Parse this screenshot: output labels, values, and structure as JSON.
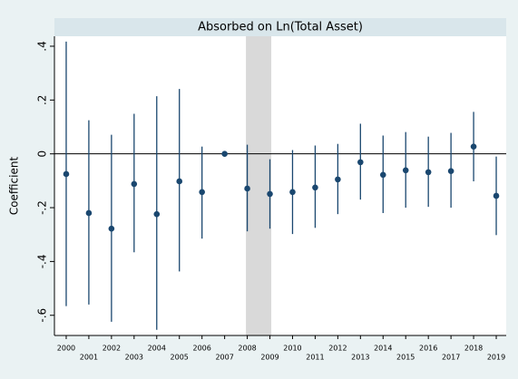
{
  "chart_data": {
    "type": "coefplot",
    "title": "Absorbed on Ln(Total Asset)",
    "y_label": "Coefficient",
    "x": [
      2000,
      2001,
      2002,
      2003,
      2004,
      2005,
      2006,
      2007,
      2008,
      2009,
      2010,
      2011,
      2012,
      2013,
      2014,
      2015,
      2016,
      2017,
      2018,
      2019
    ],
    "values": [
      -0.075,
      -0.22,
      -0.278,
      -0.112,
      -0.224,
      -0.102,
      -0.142,
      0,
      -0.129,
      -0.149,
      -0.142,
      -0.125,
      -0.095,
      -0.031,
      -0.078,
      -0.061,
      -0.068,
      -0.064,
      0.027,
      -0.156
    ],
    "lower": [
      -0.566,
      -0.56,
      -0.624,
      -0.366,
      -0.654,
      -0.437,
      -0.315,
      null,
      -0.288,
      -0.278,
      -0.298,
      -0.275,
      -0.224,
      -0.17,
      -0.22,
      -0.2,
      -0.197,
      -0.2,
      -0.102,
      -0.302
    ],
    "upper": [
      0.417,
      0.125,
      0.071,
      0.149,
      0.214,
      0.241,
      0.027,
      null,
      0.034,
      -0.02,
      0.014,
      0.031,
      0.037,
      0.112,
      0.068,
      0.081,
      0.064,
      0.078,
      0.156,
      -0.01
    ],
    "color": "#1a476f",
    "shade": [
      2008,
      2009
    ],
    "shade_color": "#d9d9d9",
    "yline": 0,
    "xlim": [
      1999.48,
      2019.44
    ],
    "xticks": [
      2000,
      2001,
      2002,
      2003,
      2004,
      2005,
      2006,
      2007,
      2008,
      2009,
      2010,
      2011,
      2012,
      2013,
      2014,
      2015,
      2016,
      2017,
      2018,
      2019
    ],
    "ylim": [
      -0.675,
      0.437
    ],
    "yticks": [
      {
        "value": 0.4,
        "label": ".4"
      },
      {
        "value": 0.2,
        "label": ".2"
      },
      0,
      {
        "value": -0.2,
        "label": "-.2"
      },
      {
        "value": -0.4,
        "label": "-.4"
      },
      {
        "value": -0.6,
        "label": "-.6"
      }
    ],
    "grid": false
  }
}
